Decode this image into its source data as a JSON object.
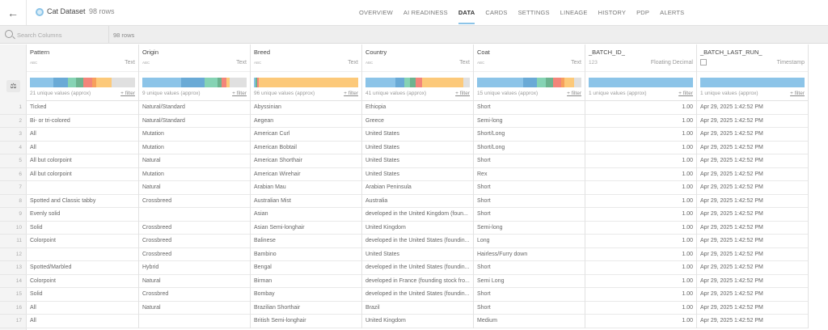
{
  "header": {
    "back_icon": "arrow-left-icon",
    "dataset_icon": "dataset-circle-icon",
    "title": "Cat Dataset",
    "row_count": "98 rows",
    "tabs": [
      {
        "label": "OVERVIEW",
        "active": false
      },
      {
        "label": "AI READINESS",
        "active": false
      },
      {
        "label": "DATA",
        "active": true
      },
      {
        "label": "CARDS",
        "active": false
      },
      {
        "label": "SETTINGS",
        "active": false
      },
      {
        "label": "LINEAGE",
        "active": false
      },
      {
        "label": "HISTORY",
        "active": false
      },
      {
        "label": "PDP",
        "active": false
      },
      {
        "label": "ALERTS",
        "active": false
      }
    ],
    "accent_color": "#8cc4e8"
  },
  "searchbar": {
    "placeholder": "Search Columns",
    "value": "",
    "row_count": "98 rows"
  },
  "gutter": {
    "profile_icon": "column-profile-icon"
  },
  "columns": [
    {
      "name": "Pattern",
      "type_icon": "ABC",
      "type": "Text",
      "unique": "21 unique values (approx)",
      "filter": "+ filter",
      "hist": [
        [
          "#8cc4e8",
          22
        ],
        [
          "#6aaad6",
          14
        ],
        [
          "#86d3b4",
          8
        ],
        [
          "#6db38f",
          7
        ],
        [
          "#f3857a",
          8
        ],
        [
          "#f7a05c",
          4
        ],
        [
          "#fcc97a",
          15
        ],
        [
          "#e0e0e0",
          22
        ]
      ]
    },
    {
      "name": "Origin",
      "type_icon": "ABC",
      "type": "Text",
      "unique": "9 unique values (approx)",
      "filter": "+ filter",
      "hist": [
        [
          "#8cc4e8",
          37
        ],
        [
          "#6aaad6",
          23
        ],
        [
          "#86d3b4",
          12
        ],
        [
          "#6db38f",
          4
        ],
        [
          "#f3857a",
          5
        ],
        [
          "#fcc97a",
          3
        ],
        [
          "#e0e0e0",
          16
        ]
      ]
    },
    {
      "name": "Breed",
      "type_icon": "ABC",
      "type": "Text",
      "unique": "96 unique values (approx)",
      "filter": "+ filter",
      "hist": [
        [
          "#8cc4e8",
          1.5
        ],
        [
          "#6db38f",
          1.5
        ],
        [
          "#f3857a",
          1.5
        ],
        [
          "#fcc97a",
          95.5
        ]
      ]
    },
    {
      "name": "Country",
      "type_icon": "ABC",
      "type": "Text",
      "unique": "41 unique values (approx)",
      "filter": "+ filter",
      "hist": [
        [
          "#8cc4e8",
          29
        ],
        [
          "#6aaad6",
          8
        ],
        [
          "#86d3b4",
          6
        ],
        [
          "#6db38f",
          5
        ],
        [
          "#f3857a",
          6
        ],
        [
          "#fcc97a",
          40
        ],
        [
          "#e0e0e0",
          6
        ]
      ]
    },
    {
      "name": "Coat",
      "type_icon": "ABC",
      "type": "Text",
      "unique": "15 unique values (approx)",
      "filter": "+ filter",
      "hist": [
        [
          "#8cc4e8",
          44
        ],
        [
          "#6aaad6",
          13
        ],
        [
          "#86d3b4",
          9
        ],
        [
          "#6db38f",
          7
        ],
        [
          "#f3857a",
          8
        ],
        [
          "#f7a05c",
          3
        ],
        [
          "#fcc97a",
          9
        ],
        [
          "#e0e0e0",
          7
        ]
      ]
    },
    {
      "name": "_BATCH_ID_",
      "type_icon": "123",
      "type": "Floating Decimal",
      "unique": "1 unique values (approx)",
      "filter": "+ filter",
      "hist": [
        [
          "#8cc4e8",
          100
        ]
      ]
    },
    {
      "name": "_BATCH_LAST_RUN_",
      "type_icon": "calendar-icon",
      "type": "Timestamp",
      "unique": "1 unique values (approx)",
      "filter": "+ filter",
      "hist": [
        [
          "#8cc4e8",
          100
        ]
      ]
    }
  ],
  "rows": [
    {
      "n": "1",
      "Pattern": "Ticked",
      "Origin": "Natural/Standard",
      "Breed": "Abyssinian",
      "Country": "Ethiopia",
      "Coat": "Short",
      "batch_id": "1.00",
      "batch_last_run": "Apr 29, 2025 1:42:52 PM"
    },
    {
      "n": "2",
      "Pattern": "Bi- or tri-colored",
      "Origin": "Natural/Standard",
      "Breed": "Aegean",
      "Country": "Greece",
      "Coat": "Semi-long",
      "batch_id": "1.00",
      "batch_last_run": "Apr 29, 2025 1:42:52 PM"
    },
    {
      "n": "3",
      "Pattern": "All",
      "Origin": "Mutation",
      "Breed": "American Curl",
      "Country": "United States",
      "Coat": "Short/Long",
      "batch_id": "1.00",
      "batch_last_run": "Apr 29, 2025 1:42:52 PM"
    },
    {
      "n": "4",
      "Pattern": "All",
      "Origin": "Mutation",
      "Breed": "American Bobtail",
      "Country": "United States",
      "Coat": "Short/Long",
      "batch_id": "1.00",
      "batch_last_run": "Apr 29, 2025 1:42:52 PM"
    },
    {
      "n": "5",
      "Pattern": "All but colorpoint",
      "Origin": "Natural",
      "Breed": "American Shorthair",
      "Country": "United States",
      "Coat": "Short",
      "batch_id": "1.00",
      "batch_last_run": "Apr 29, 2025 1:42:52 PM"
    },
    {
      "n": "6",
      "Pattern": "All but colorpoint",
      "Origin": "Mutation",
      "Breed": "American Wirehair",
      "Country": "United States",
      "Coat": "Rex",
      "batch_id": "1.00",
      "batch_last_run": "Apr 29, 2025 1:42:52 PM"
    },
    {
      "n": "7",
      "Pattern": "",
      "Origin": "Natural",
      "Breed": "Arabian Mau",
      "Country": "Arabian Peninsula",
      "Coat": "Short",
      "batch_id": "1.00",
      "batch_last_run": "Apr 29, 2025 1:42:52 PM"
    },
    {
      "n": "8",
      "Pattern": "Spotted and Classic tabby",
      "Origin": "Crossbreed",
      "Breed": "Australian Mist",
      "Country": "Australia",
      "Coat": "Short",
      "batch_id": "1.00",
      "batch_last_run": "Apr 29, 2025 1:42:52 PM"
    },
    {
      "n": "9",
      "Pattern": "Evenly solid",
      "Origin": "",
      "Breed": "Asian",
      "Country": "developed in the United Kingdom (foun...",
      "Coat": "Short",
      "batch_id": "1.00",
      "batch_last_run": "Apr 29, 2025 1:42:52 PM"
    },
    {
      "n": "10",
      "Pattern": "Solid",
      "Origin": "Crossbreed",
      "Breed": "Asian Semi-longhair",
      "Country": "United Kingdom",
      "Coat": "Semi-long",
      "batch_id": "1.00",
      "batch_last_run": "Apr 29, 2025 1:42:52 PM"
    },
    {
      "n": "11",
      "Pattern": "Colorpoint",
      "Origin": "Crossbreed",
      "Breed": "Balinese",
      "Country": "developed in the United States (foundin...",
      "Coat": "Long",
      "batch_id": "1.00",
      "batch_last_run": "Apr 29, 2025 1:42:52 PM"
    },
    {
      "n": "12",
      "Pattern": "",
      "Origin": "Crossbreed",
      "Breed": "Bambino",
      "Country": "United States",
      "Coat": "Hairless/Furry down",
      "batch_id": "1.00",
      "batch_last_run": "Apr 29, 2025 1:42:52 PM"
    },
    {
      "n": "13",
      "Pattern": "Spotted/Marbled",
      "Origin": "Hybrid",
      "Breed": "Bengal",
      "Country": "developed in the United States (foundin...",
      "Coat": "Short",
      "batch_id": "1.00",
      "batch_last_run": "Apr 29, 2025 1:42:52 PM"
    },
    {
      "n": "14",
      "Pattern": "Colorpoint",
      "Origin": "Natural",
      "Breed": "Birman",
      "Country": "developed in France (founding stock fro...",
      "Coat": "Semi Long",
      "batch_id": "1.00",
      "batch_last_run": "Apr 29, 2025 1:42:52 PM"
    },
    {
      "n": "15",
      "Pattern": "Solid",
      "Origin": "Crossbred",
      "Breed": "Bombay",
      "Country": "developed in the United States (foundin...",
      "Coat": "Short",
      "batch_id": "1.00",
      "batch_last_run": "Apr 29, 2025 1:42:52 PM"
    },
    {
      "n": "16",
      "Pattern": "All",
      "Origin": "Natural",
      "Breed": "Brazilian Shorthair",
      "Country": "Brazil",
      "Coat": "Short",
      "batch_id": "1.00",
      "batch_last_run": "Apr 29, 2025 1:42:52 PM"
    },
    {
      "n": "17",
      "Pattern": "All",
      "Origin": "",
      "Breed": "British Semi-longhair",
      "Country": "United Kingdom",
      "Coat": "Medium",
      "batch_id": "1.00",
      "batch_last_run": "Apr 29, 2025 1:42:52 PM"
    }
  ]
}
